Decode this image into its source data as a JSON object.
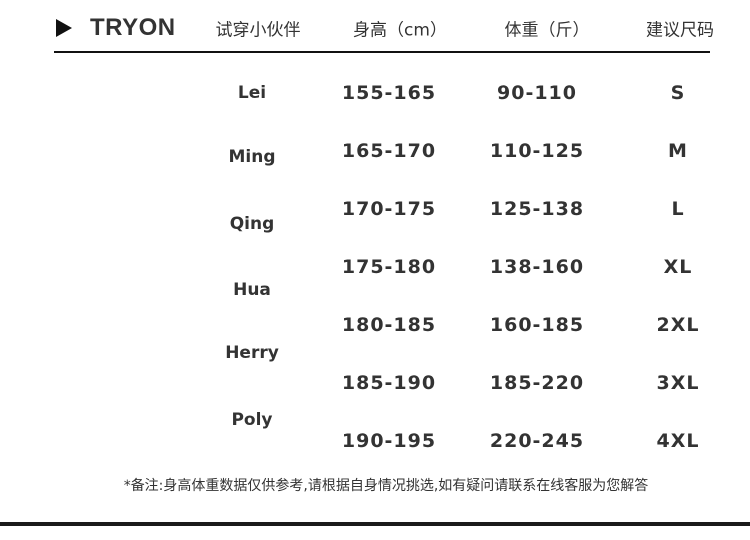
{
  "header": {
    "brand": "TRYON",
    "columns": [
      "试穿小伙伴",
      "身高（cm）",
      "体重（斤）",
      "建议尺码"
    ]
  },
  "names": [
    "Lei",
    "Ming",
    "Qing",
    "Hua",
    "Herry",
    "Poly"
  ],
  "rows": [
    {
      "height": "155-165",
      "weight": "90-110",
      "size": "S"
    },
    {
      "height": "165-170",
      "weight": "110-125",
      "size": "M"
    },
    {
      "height": "170-175",
      "weight": "125-138",
      "size": "L"
    },
    {
      "height": "175-180",
      "weight": "138-160",
      "size": "XL"
    },
    {
      "height": "180-185",
      "weight": "160-185",
      "size": "2XL"
    },
    {
      "height": "185-190",
      "weight": "185-220",
      "size": "3XL"
    },
    {
      "height": "190-195",
      "weight": "220-245",
      "size": "4XL"
    }
  ],
  "note": "*备注:身高体重数据仅供参考,请根据自身情况挑选,如有疑问请联系在线客服为您解答"
}
